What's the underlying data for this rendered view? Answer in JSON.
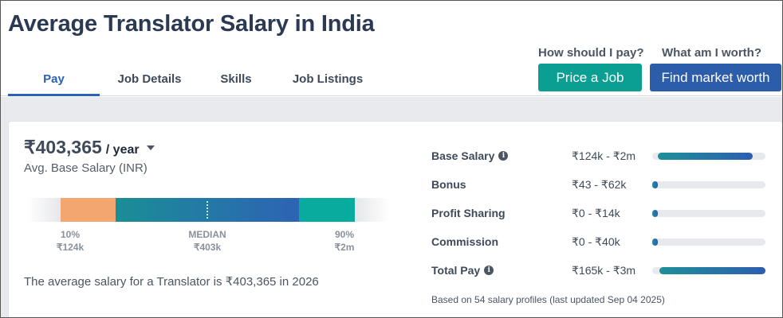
{
  "page": {
    "title": "Average Translator Salary in India"
  },
  "tabs": [
    {
      "label": "Pay",
      "active": true
    },
    {
      "label": "Job Details",
      "active": false
    },
    {
      "label": "Skills",
      "active": false
    },
    {
      "label": "Job Listings",
      "active": false
    }
  ],
  "actions": {
    "price_question": "How should I pay?",
    "price_button": "Price a Job",
    "worth_question": "What am I worth?",
    "worth_button": "Find market worth"
  },
  "summary": {
    "amount": "₹403,365",
    "period": "/ year",
    "subtitle": "Avg. Base Salary (INR)",
    "note": "The average salary for a Translator is ₹403,365 in 2026"
  },
  "range": {
    "p10_label": "10%",
    "p10_value": "₹124k",
    "median_label": "MEDIAN",
    "median_value": "₹403k",
    "p90_label": "90%",
    "p90_value": "₹2m"
  },
  "breakdown": [
    {
      "name": "Base Salary",
      "info": true,
      "range": "₹124k - ₹2m",
      "fill_start": 0.05,
      "fill_end": 0.89
    },
    {
      "name": "Bonus",
      "info": false,
      "range": "₹43 - ₹62k",
      "fill_start": 0.0,
      "fill_end": 0.05
    },
    {
      "name": "Profit Sharing",
      "info": false,
      "range": "₹0 - ₹14k",
      "fill_start": 0.0,
      "fill_end": 0.05
    },
    {
      "name": "Commission",
      "info": false,
      "range": "₹0 - ₹40k",
      "fill_start": 0.0,
      "fill_end": 0.05
    },
    {
      "name": "Total Pay",
      "info": true,
      "range": "₹165k - ₹3m",
      "fill_start": 0.06,
      "fill_end": 1.0
    }
  ],
  "footnote": "Based on 54 salary profiles (last updated Sep 04 2025)",
  "colors": {
    "accent": "#2962b7",
    "teal_button": "#0b9e92",
    "blue_button": "#2c5dab",
    "low_segment": "#f4a66f",
    "high_segment": "#0aab9f"
  },
  "icons": {
    "period_dropdown": "caret-down-icon",
    "info": "info-icon"
  }
}
